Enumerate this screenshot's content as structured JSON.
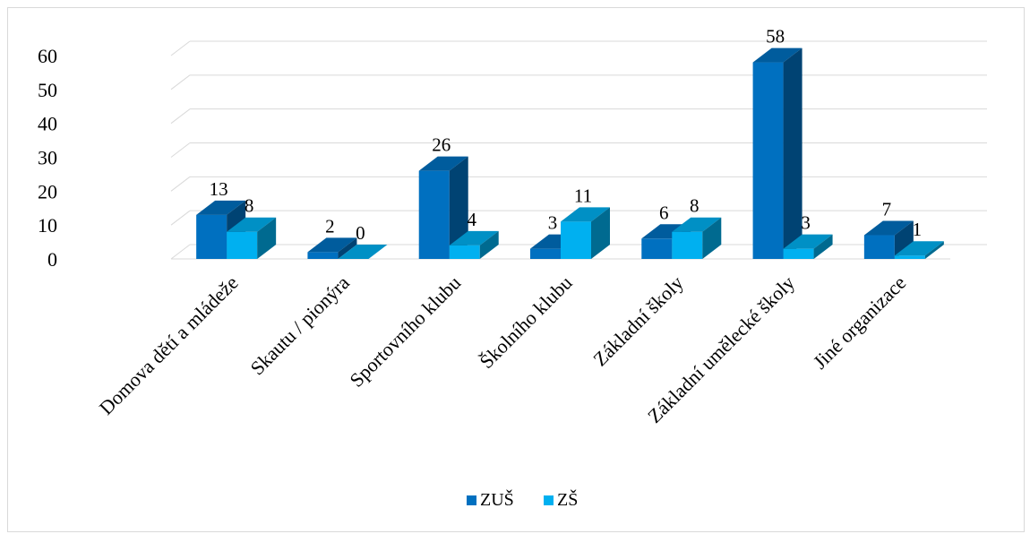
{
  "chart_data": {
    "type": "bar",
    "title": "",
    "xlabel": "",
    "ylabel": "",
    "ylim": [
      0,
      60
    ],
    "yticks": [
      0,
      10,
      20,
      30,
      40,
      50,
      60
    ],
    "grid": true,
    "legend_position": "bottom",
    "categories": [
      "Domova dětí a mládeže",
      "Skautu / pionýra",
      "Sportovního klubu",
      "Školního klubu",
      "Základní školy",
      "Základní umělecké školy",
      "Jiné organizace"
    ],
    "series": [
      {
        "name": "ZUŠ",
        "color": "#0070c0",
        "values": [
          13,
          2,
          26,
          3,
          6,
          58,
          7
        ]
      },
      {
        "name": "ZŠ",
        "color": "#00b0f0",
        "values": [
          8,
          0,
          4,
          11,
          8,
          3,
          1
        ]
      }
    ]
  }
}
